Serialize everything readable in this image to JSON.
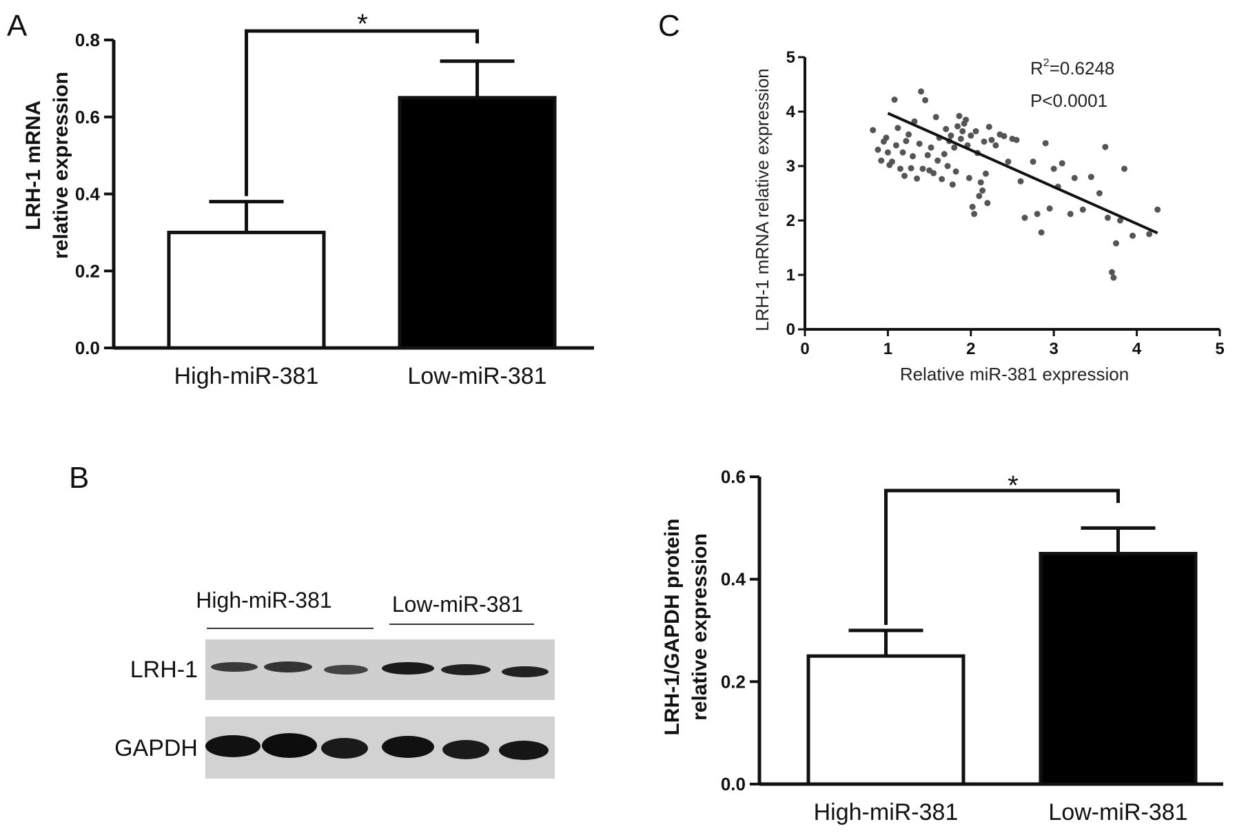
{
  "panels": {
    "A": {
      "letter": "A",
      "ylabel_line1": "LRH-1 mRNA",
      "ylabel_line2": "relative expression",
      "significance": "*"
    },
    "B": {
      "letter": "B",
      "groups": [
        "High-miR-381",
        "Low-miR-381"
      ],
      "rows": [
        "LRH-1",
        "GAPDH"
      ]
    },
    "C": {
      "letter": "C",
      "ylabel": "LRH-1 mRNA relative expression",
      "xlabel": "Relative miR-381 expression",
      "r2_prefix": "R",
      "r2_sup": "2",
      "r2_value": "=0.6248",
      "p_text": "P<0.0001"
    },
    "D": {
      "ylabel_line1": "LRH-1/GAPDH protein",
      "ylabel_line2": "relative expression",
      "significance": "*"
    }
  },
  "colors": {
    "high_bar": "#ffffff",
    "low_bar": "#000000",
    "scatter_point": "#555555"
  },
  "chart_data": [
    {
      "type": "bar",
      "panel": "A",
      "categories": [
        "High-miR-381",
        "Low-miR-381"
      ],
      "values": [
        0.3,
        0.65
      ],
      "errors": [
        0.08,
        0.095
      ],
      "ylim": [
        0,
        0.8
      ],
      "yticks": [
        "0.0",
        "0.2",
        "0.4",
        "0.6",
        "0.8"
      ],
      "ylabel": "LRH-1 mRNA relative expression"
    },
    {
      "type": "scatter",
      "panel": "C",
      "xlim": [
        0,
        5
      ],
      "ylim": [
        0,
        5
      ],
      "xticks": [
        "0",
        "1",
        "2",
        "3",
        "4",
        "5"
      ],
      "yticks": [
        "0",
        "1",
        "2",
        "3",
        "4",
        "5"
      ],
      "xlabel": "Relative miR-381 expression",
      "ylabel": "LRH-1 mRNA relative expression",
      "fit_line": [
        [
          1.0,
          3.97
        ],
        [
          4.25,
          1.77
        ]
      ],
      "points": [
        [
          0.82,
          3.66
        ],
        [
          0.88,
          3.3
        ],
        [
          0.92,
          3.1
        ],
        [
          0.95,
          3.45
        ],
        [
          0.98,
          3.52
        ],
        [
          1.0,
          3.25
        ],
        [
          1.02,
          3.02
        ],
        [
          1.05,
          3.08
        ],
        [
          1.08,
          4.22
        ],
        [
          1.1,
          3.38
        ],
        [
          1.12,
          3.7
        ],
        [
          1.15,
          2.95
        ],
        [
          1.18,
          3.25
        ],
        [
          1.2,
          2.82
        ],
        [
          1.22,
          3.46
        ],
        [
          1.25,
          3.58
        ],
        [
          1.28,
          2.96
        ],
        [
          1.3,
          3.18
        ],
        [
          1.32,
          3.82
        ],
        [
          1.35,
          2.77
        ],
        [
          1.38,
          3.41
        ],
        [
          1.4,
          4.37
        ],
        [
          1.42,
          2.95
        ],
        [
          1.45,
          4.21
        ],
        [
          1.48,
          3.2
        ],
        [
          1.5,
          2.92
        ],
        [
          1.52,
          3.34
        ],
        [
          1.55,
          2.87
        ],
        [
          1.58,
          3.9
        ],
        [
          1.6,
          3.1
        ],
        [
          1.62,
          3.52
        ],
        [
          1.65,
          2.76
        ],
        [
          1.68,
          3.22
        ],
        [
          1.7,
          3.68
        ],
        [
          1.72,
          3.0
        ],
        [
          1.74,
          3.46
        ],
        [
          1.76,
          3.56
        ],
        [
          1.78,
          2.66
        ],
        [
          1.8,
          3.34
        ],
        [
          1.82,
          2.9
        ],
        [
          1.84,
          3.73
        ],
        [
          1.86,
          3.92
        ],
        [
          1.88,
          3.5
        ],
        [
          1.9,
          3.64
        ],
        [
          1.92,
          3.78
        ],
        [
          1.94,
          3.85
        ],
        [
          1.96,
          3.38
        ],
        [
          1.98,
          2.78
        ],
        [
          2.0,
          3.56
        ],
        [
          2.02,
          2.25
        ],
        [
          2.04,
          2.12
        ],
        [
          2.06,
          3.64
        ],
        [
          2.08,
          3.24
        ],
        [
          2.1,
          2.45
        ],
        [
          2.12,
          2.7
        ],
        [
          2.14,
          2.55
        ],
        [
          2.16,
          3.45
        ],
        [
          2.18,
          2.86
        ],
        [
          2.2,
          2.32
        ],
        [
          2.22,
          3.72
        ],
        [
          2.25,
          3.48
        ],
        [
          2.3,
          3.38
        ],
        [
          2.35,
          3.58
        ],
        [
          2.4,
          3.55
        ],
        [
          2.45,
          3.08
        ],
        [
          2.5,
          3.5
        ],
        [
          2.55,
          3.48
        ],
        [
          2.6,
          2.72
        ],
        [
          2.65,
          2.05
        ],
        [
          2.75,
          3.08
        ],
        [
          2.8,
          2.12
        ],
        [
          2.85,
          1.78
        ],
        [
          2.9,
          3.42
        ],
        [
          2.95,
          2.22
        ],
        [
          3.0,
          2.95
        ],
        [
          3.05,
          2.62
        ],
        [
          3.1,
          3.05
        ],
        [
          3.2,
          2.12
        ],
        [
          3.25,
          2.78
        ],
        [
          3.35,
          2.2
        ],
        [
          3.45,
          2.8
        ],
        [
          3.55,
          2.5
        ],
        [
          3.62,
          3.35
        ],
        [
          3.65,
          2.05
        ],
        [
          3.7,
          1.05
        ],
        [
          3.72,
          0.95
        ],
        [
          3.75,
          1.58
        ],
        [
          3.8,
          2.0
        ],
        [
          3.85,
          2.95
        ],
        [
          3.95,
          1.72
        ],
        [
          4.15,
          1.75
        ],
        [
          4.25,
          2.2
        ]
      ]
    },
    {
      "type": "bar",
      "panel": "D",
      "categories": [
        "High-miR-381",
        "Low-miR-381"
      ],
      "values": [
        0.25,
        0.45
      ],
      "errors": [
        0.05,
        0.05
      ],
      "ylim": [
        0,
        0.6
      ],
      "yticks": [
        "0.0",
        "0.2",
        "0.4",
        "0.6"
      ],
      "ylabel": "LRH-1/GAPDH protein relative expression"
    }
  ]
}
